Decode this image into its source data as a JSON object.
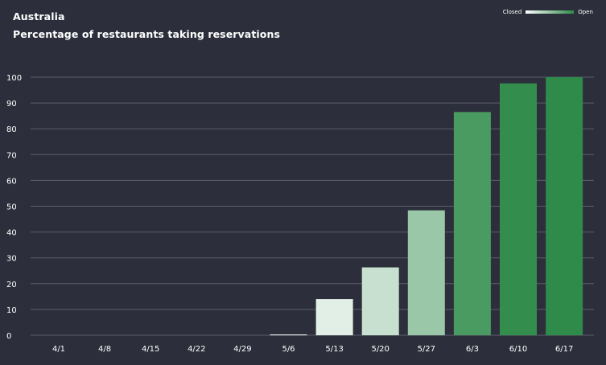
{
  "chart_data": {
    "type": "bar",
    "title": "Australia",
    "subtitle": "Percentage of restaurants taking reservations",
    "categories": [
      "4/1",
      "4/8",
      "4/15",
      "4/22",
      "4/29",
      "5/6",
      "5/13",
      "5/20",
      "5/27",
      "6/3",
      "6/10",
      "6/17"
    ],
    "values": [
      0,
      0,
      0,
      0,
      0,
      0.3,
      14,
      26.3,
      48.4,
      86.5,
      97.6,
      100
    ],
    "ylim": [
      0,
      100
    ],
    "yticks": [
      0,
      10,
      20,
      30,
      40,
      50,
      60,
      70,
      80,
      90,
      100
    ],
    "grid": true,
    "legend": {
      "placement": "top-right",
      "low_label": "Closed",
      "high_label": "Open",
      "low_color": "#ffffff",
      "high_color": "#2e8b4a"
    }
  }
}
